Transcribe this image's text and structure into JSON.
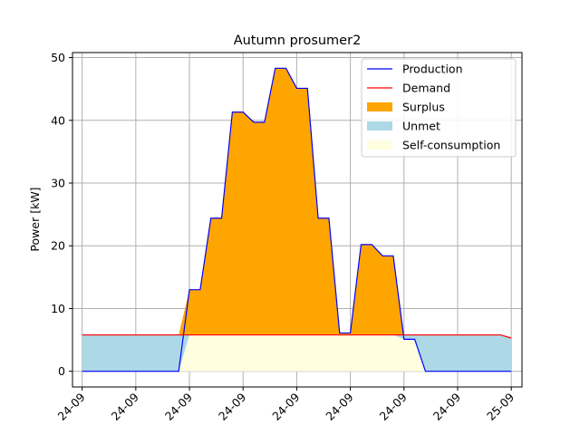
{
  "chart_data": {
    "type": "area",
    "title": "Autumn prosumer2",
    "xlabel": "",
    "ylabel": "Power [kW]",
    "ylim": [
      -2.5,
      50.8
    ],
    "yticks": [
      0,
      10,
      20,
      30,
      40,
      50
    ],
    "xlim": [
      -0.9,
      41.0
    ],
    "xticks": [
      0,
      5,
      10,
      15,
      20,
      25,
      30,
      35,
      40
    ],
    "xtick_labels": [
      "24-09",
      "24-09",
      "24-09",
      "24-09",
      "24-09",
      "24-09",
      "24-09",
      "24-09",
      "25-09"
    ],
    "grid": true,
    "legend_position": "top-right",
    "x": [
      0,
      1,
      2,
      3,
      4,
      5,
      6,
      7,
      8,
      9,
      10,
      11,
      12,
      13,
      14,
      15,
      16,
      17,
      18,
      19,
      20,
      21,
      22,
      23,
      24,
      25,
      26,
      27,
      28,
      29,
      30,
      31,
      32,
      33,
      34,
      35,
      36,
      37,
      38,
      39,
      40
    ],
    "series": [
      {
        "name": "Production",
        "style": "line",
        "color": "#0000ff",
        "values": [
          0,
          0,
          0,
          0,
          0,
          0,
          0,
          0,
          0,
          0,
          13.0,
          13.0,
          24.4,
          24.4,
          41.3,
          41.3,
          39.7,
          39.7,
          48.3,
          48.3,
          45.1,
          45.1,
          24.4,
          24.4,
          6.1,
          6.1,
          20.2,
          20.2,
          18.4,
          18.4,
          5.1,
          5.1,
          0,
          0,
          0,
          0,
          0,
          0,
          0,
          0,
          0
        ]
      },
      {
        "name": "Demand",
        "style": "line",
        "color": "#ff0000",
        "values": [
          5.8,
          5.8,
          5.8,
          5.8,
          5.8,
          5.8,
          5.8,
          5.8,
          5.8,
          5.8,
          5.8,
          5.8,
          5.8,
          5.8,
          5.8,
          5.8,
          5.8,
          5.8,
          5.8,
          5.8,
          5.8,
          5.8,
          5.8,
          5.8,
          5.8,
          5.8,
          5.8,
          5.8,
          5.8,
          5.8,
          5.8,
          5.8,
          5.8,
          5.8,
          5.8,
          5.8,
          5.8,
          5.8,
          5.8,
          5.8,
          5.3
        ]
      },
      {
        "name": "Surplus",
        "style": "fill",
        "color": "#ffa500"
      },
      {
        "name": "Unmet",
        "style": "fill",
        "color": "#add8e6"
      },
      {
        "name": "Self-consumption",
        "style": "fill",
        "color": "#ffffe0"
      }
    ]
  }
}
